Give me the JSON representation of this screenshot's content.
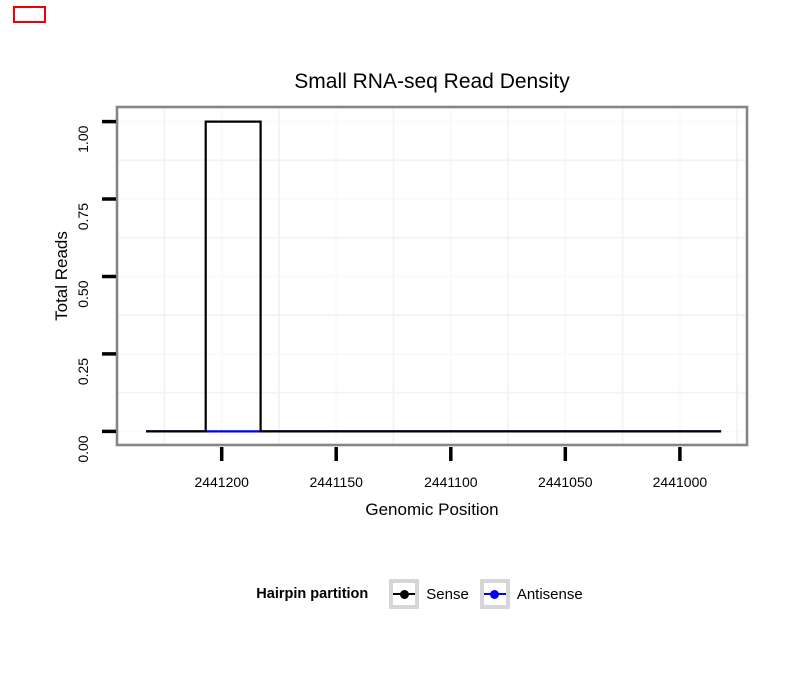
{
  "marker": {
    "color": "#ee0000"
  },
  "chart_data": {
    "type": "line",
    "subtype": "step",
    "title": "Small RNA-seq Read Density",
    "xlabel": "Genomic Position",
    "ylabel": "Total Reads",
    "legend_title": "Hairpin partition",
    "legend_position": "bottom",
    "x_reversed": true,
    "grid_on": true,
    "xlim": [
      2441245.7,
      2440970.7
    ],
    "ylim": [
      -0.044,
      1.047
    ],
    "x_tick_values": [
      2441200,
      2441150,
      2441100,
      2441050,
      2441000
    ],
    "x_tick_labels": [
      "2441200",
      "2441150",
      "2441100",
      "2441050",
      "2441000"
    ],
    "y_tick_values": [
      0,
      0.25,
      0.5,
      0.75,
      1
    ],
    "y_tick_labels": [
      "0.00",
      "0.25",
      "0.50",
      "0.75",
      "1.00"
    ],
    "grid": {
      "minor_x": [
        2441225,
        2441175,
        2441125,
        2441075,
        2441025,
        2440975
      ],
      "minor_y": [
        0.125,
        0.375,
        0.625,
        0.875
      ]
    },
    "series": [
      {
        "name": "Sense",
        "color": "#000000",
        "points": [
          [
            2441233,
            0
          ],
          [
            2441207,
            0
          ],
          [
            2441207,
            1
          ],
          [
            2441183,
            1
          ],
          [
            2441183,
            0
          ],
          [
            2440982,
            0
          ]
        ]
      },
      {
        "name": "Antisense",
        "color": "#0000ee",
        "points": [
          [
            2441233,
            0
          ],
          [
            2440982,
            0
          ]
        ]
      }
    ]
  }
}
